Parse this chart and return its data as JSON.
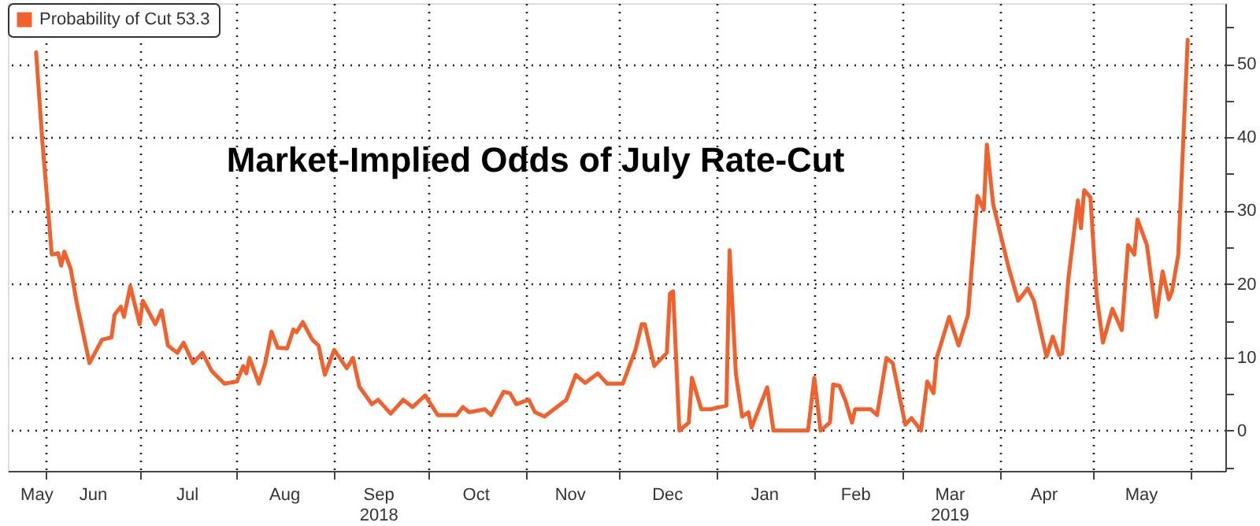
{
  "chart_data": {
    "type": "line",
    "title": "Market-Implied Odds of July Rate-Cut",
    "x": [
      "2018-05-29",
      "2018-05-31",
      "2018-06-03",
      "2018-06-05",
      "2018-06-06",
      "2018-06-07",
      "2018-06-09",
      "2018-06-11",
      "2018-06-15",
      "2018-06-19",
      "2018-06-22",
      "2018-06-23",
      "2018-06-25",
      "2018-06-26",
      "2018-06-28",
      "2018-07-01",
      "2018-07-02",
      "2018-07-06",
      "2018-07-08",
      "2018-07-10",
      "2018-07-13",
      "2018-07-15",
      "2018-07-18",
      "2018-07-21",
      "2018-07-24",
      "2018-07-28",
      "2018-08-01",
      "2018-08-03",
      "2018-08-04",
      "2018-08-05",
      "2018-08-08",
      "2018-08-10",
      "2018-08-12",
      "2018-08-14",
      "2018-08-17",
      "2018-08-19",
      "2018-08-20",
      "2018-08-22",
      "2018-08-25",
      "2018-08-27",
      "2018-08-29",
      "2018-09-01",
      "2018-09-05",
      "2018-09-07",
      "2018-09-09",
      "2018-09-13",
      "2018-09-15",
      "2018-09-19",
      "2018-09-23",
      "2018-09-26",
      "2018-09-30",
      "2018-10-04",
      "2018-10-10",
      "2018-10-12",
      "2018-10-14",
      "2018-10-19",
      "2018-10-21",
      "2018-10-25",
      "2018-10-27",
      "2018-10-29",
      "2018-11-02",
      "2018-11-04",
      "2018-11-07",
      "2018-11-14",
      "2018-11-17",
      "2018-11-20",
      "2018-11-24",
      "2018-11-27",
      "2018-12-02",
      "2018-12-06",
      "2018-12-08",
      "2018-12-09",
      "2018-12-12",
      "2018-12-16",
      "2018-12-17",
      "2018-12-18",
      "2018-12-20",
      "2018-12-23",
      "2018-12-24",
      "2018-12-27",
      "2018-12-30",
      "2019-01-04",
      "2019-01-05",
      "2019-01-07",
      "2019-01-09",
      "2019-01-11",
      "2019-01-12",
      "2019-01-17",
      "2019-01-19",
      "2019-01-30",
      "2019-02-01",
      "2019-02-03",
      "2019-02-06",
      "2019-02-07",
      "2019-02-09",
      "2019-02-11",
      "2019-02-13",
      "2019-02-14",
      "2019-02-19",
      "2019-02-21",
      "2019-02-24",
      "2019-02-26",
      "2019-03-02",
      "2019-03-04",
      "2019-03-07",
      "2019-03-09",
      "2019-03-11",
      "2019-03-12",
      "2019-03-16",
      "2019-03-19",
      "2019-03-22",
      "2019-03-25",
      "2019-03-27",
      "2019-03-28",
      "2019-03-30",
      "2019-04-04",
      "2019-04-07",
      "2019-04-10",
      "2019-04-12",
      "2019-04-16",
      "2019-04-18",
      "2019-04-20",
      "2019-04-21",
      "2019-04-23",
      "2019-04-26",
      "2019-04-27",
      "2019-04-28",
      "2019-04-30",
      "2019-05-02",
      "2019-05-04",
      "2019-05-07",
      "2019-05-10",
      "2019-05-12",
      "2019-05-14",
      "2019-05-15",
      "2019-05-18",
      "2019-05-21",
      "2019-05-23",
      "2019-05-25",
      "2019-05-26",
      "2019-05-28",
      "2019-05-31"
    ],
    "series": [
      {
        "name": "Probability of Cut 53.3",
        "color": "#f0622d",
        "values": [
          51.6,
          39.4,
          24.0,
          24.2,
          22.5,
          24.4,
          22.1,
          17.3,
          9.2,
          12.4,
          12.7,
          15.8,
          16.9,
          15.5,
          19.7,
          14.5,
          17.7,
          14.5,
          16.4,
          11.6,
          10.6,
          12.0,
          9.2,
          10.6,
          8.1,
          6.4,
          6.7,
          8.8,
          7.8,
          9.9,
          6.4,
          9.2,
          13.5,
          11.3,
          11.2,
          13.8,
          13.4,
          14.8,
          12.4,
          11.6,
          7.6,
          11.0,
          8.5,
          9.9,
          6.0,
          3.6,
          4.2,
          2.3,
          4.2,
          3.2,
          4.8,
          2.1,
          2.1,
          3.2,
          2.5,
          2.9,
          2.1,
          5.3,
          5.1,
          3.6,
          4.2,
          2.5,
          1.9,
          4.2,
          7.6,
          6.5,
          7.8,
          6.4,
          6.4,
          11.0,
          14.5,
          14.5,
          8.8,
          10.6,
          18.7,
          19.0,
          0,
          1.1,
          7.2,
          2.9,
          2.9,
          3.4,
          24.6,
          7.8,
          1.9,
          2.5,
          0.4,
          5.9,
          0,
          0,
          7.2,
          0,
          1.1,
          6.3,
          6.1,
          4.0,
          1.1,
          2.9,
          2.9,
          2.1,
          9.9,
          9.2,
          0.8,
          1.7,
          0,
          6.7,
          5.1,
          9.9,
          15.5,
          11.6,
          15.8,
          32.0,
          30.1,
          39.0,
          30.9,
          22.1,
          17.7,
          19.4,
          17.7,
          10.1,
          12.8,
          10.3,
          10.5,
          20.8,
          31.4,
          27.6,
          32.8,
          31.8,
          18.3,
          12.0,
          16.6,
          13.7,
          25.3,
          24.0,
          28.8,
          25.3,
          15.5,
          21.7,
          17.9,
          19.0,
          24.0,
          53.3
        ]
      }
    ],
    "xlim": [
      "2018-05-20",
      "2019-06-12"
    ],
    "xticks": [
      {
        "value": "2018-05-29",
        "label": "May"
      },
      {
        "value": "2018-06-01",
        "label": null
      },
      {
        "value": "2018-06-16",
        "label": "Jun"
      },
      {
        "value": "2018-07-01",
        "label": null
      },
      {
        "value": "2018-07-16",
        "label": "Jul"
      },
      {
        "value": "2018-08-01",
        "label": null
      },
      {
        "value": "2018-08-16",
        "label": "Aug"
      },
      {
        "value": "2018-09-01",
        "label": null
      },
      {
        "value": "2018-09-15",
        "label": "Sep\n2018"
      },
      {
        "value": "2018-10-01",
        "label": null
      },
      {
        "value": "2018-10-16",
        "label": "Oct"
      },
      {
        "value": "2018-11-01",
        "label": null
      },
      {
        "value": "2018-11-15",
        "label": "Nov"
      },
      {
        "value": "2018-12-01",
        "label": null
      },
      {
        "value": "2018-12-16",
        "label": "Dec"
      },
      {
        "value": "2019-01-01",
        "label": null
      },
      {
        "value": "2019-01-16",
        "label": "Jan"
      },
      {
        "value": "2019-02-01",
        "label": null
      },
      {
        "value": "2019-02-14",
        "label": "Feb"
      },
      {
        "value": "2019-03-01",
        "label": null
      },
      {
        "value": "2019-03-16",
        "label": "Mar\n2019"
      },
      {
        "value": "2019-04-01",
        "label": null
      },
      {
        "value": "2019-04-15",
        "label": "Apr"
      },
      {
        "value": "2019-05-01",
        "label": null
      },
      {
        "value": "2019-05-16",
        "label": "May"
      },
      {
        "value": "2019-06-01",
        "label": null
      }
    ],
    "ylim": [
      -5.5,
      58.3
    ],
    "yticks": [
      {
        "value": -5,
        "label": null
      },
      0,
      {
        "value": 5,
        "label": null
      },
      10,
      {
        "value": 15,
        "label": null
      },
      20,
      {
        "value": 25,
        "label": null
      },
      30,
      {
        "value": 35,
        "label": null
      },
      40,
      {
        "value": 45,
        "label": null
      },
      50,
      {
        "value": 55,
        "label": null
      }
    ],
    "grid": true,
    "legend": "top left",
    "marker": "none",
    "line_style": "solid"
  }
}
